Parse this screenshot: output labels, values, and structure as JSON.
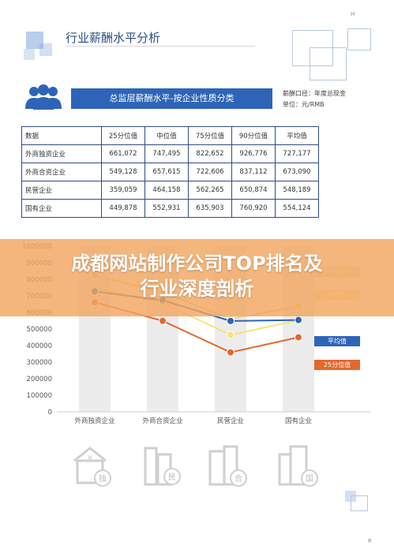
{
  "header": {
    "title": "行业薪酬水平分析",
    "corner_top": "H",
    "corner_bottom": "R"
  },
  "banner": {
    "title": "总监层薪酬水平-按企业性质分类",
    "meta_line1": "薪酬口径：年度总现金",
    "meta_line2": "单位：元/RMB"
  },
  "table": {
    "headers": [
      "数据",
      "25分位值",
      "中位值",
      "75分位值",
      "90分位值",
      "平均值"
    ],
    "rows": [
      {
        "label": "外商独资企业",
        "values": [
          "661,072",
          "747,495",
          "822,652",
          "926,776",
          "727,177"
        ]
      },
      {
        "label": "外商合资企业",
        "values": [
          "549,128",
          "657,615",
          "722,606",
          "837,112",
          "673,090"
        ]
      },
      {
        "label": "民营企业",
        "values": [
          "359,059",
          "464,158",
          "562,265",
          "650,874",
          "548,189"
        ]
      },
      {
        "label": "国有企业",
        "values": [
          "449,878",
          "552,931",
          "635,903",
          "760,920",
          "554,124"
        ]
      }
    ]
  },
  "overlay": {
    "line1": "成都网站制作公司TOP排名及",
    "line2": "行业深度剖析"
  },
  "chart_data": {
    "type": "line",
    "categories": [
      "外商独资企业",
      "外商合资企业",
      "民营企业",
      "国有企业"
    ],
    "ylim": [
      0,
      1000000
    ],
    "yticks": [
      "0",
      "100000",
      "200000",
      "300000",
      "400000",
      "500000",
      "600000",
      "700000",
      "800000",
      "900000",
      "1000000"
    ],
    "series": [
      {
        "name": "75分位值",
        "values": [
          822652,
          722606,
          562265,
          635903
        ],
        "color": "#f5cf83"
      },
      {
        "name": "中位值",
        "values": [
          747495,
          657615,
          464158,
          552931
        ],
        "color": "#f7e37a"
      },
      {
        "name": "平均值",
        "values": [
          727177,
          673090,
          548189,
          554124
        ],
        "color": "#2e64b8"
      },
      {
        "name": "25分位值",
        "values": [
          661072,
          549128,
          359059,
          449878
        ],
        "color": "#e4672e"
      }
    ],
    "legend_visible": [
      "平均值",
      "25分位值"
    ],
    "legend_faded": [
      "75分位值",
      "中位值"
    ]
  },
  "icons": {
    "dujia_char": "独",
    "min_char": "民",
    "he_char": "合",
    "guo_char": "国"
  }
}
